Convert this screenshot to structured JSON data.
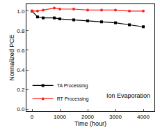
{
  "chart_data": {
    "type": "line",
    "x_label": "Time (hour)",
    "y_label": "Normalized PCE",
    "xlim": [
      -200,
      4400
    ],
    "xticks": [
      0,
      1000,
      2000,
      3000,
      4000
    ],
    "ylim": [
      -0.02,
      1.07
    ],
    "yticks": [
      {
        "value": 0,
        "label": "0.0"
      },
      {
        "value": 0.2,
        "label": "0.2"
      },
      {
        "value": 0.4,
        "label": "0.4"
      },
      {
        "value": 0.6,
        "label": "0.6"
      },
      {
        "value": 0.8,
        "label": "0.8"
      },
      {
        "value": 1.0,
        "label": "1.0"
      }
    ],
    "grid": false,
    "legend": "lower left",
    "annotations": [
      {
        "text": "Ion Evaporation"
      }
    ],
    "series": [
      {
        "name": "TA Processing",
        "color": "#000000",
        "marker": "square",
        "x": [
          0,
          200,
          400,
          800,
          1000,
          1500,
          2000,
          2500,
          3000,
          3500,
          4000
        ],
        "values": [
          1.0,
          0.94,
          0.93,
          0.93,
          0.92,
          0.91,
          0.9,
          0.89,
          0.88,
          0.86,
          0.84
        ]
      },
      {
        "name": "RT Processing",
        "color": "#ff2020",
        "marker": "circle",
        "x": [
          0,
          200,
          400,
          800,
          1000,
          1500,
          2000,
          2500,
          3000,
          3500,
          4000
        ],
        "values": [
          1.0,
          1.0,
          1.01,
          1.03,
          1.02,
          1.02,
          1.01,
          1.01,
          1.01,
          1.0,
          1.0
        ]
      }
    ]
  }
}
